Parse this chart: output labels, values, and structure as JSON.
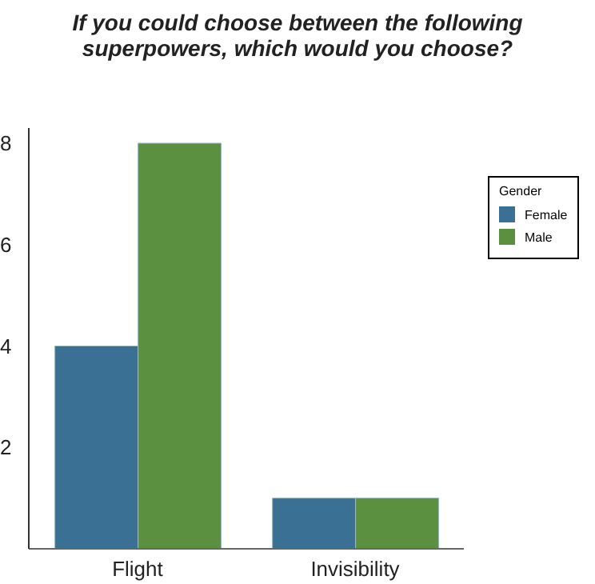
{
  "chart_data": {
    "type": "bar",
    "title": "If you could choose between the following superpowers, which would you choose?",
    "categories": [
      "Flight",
      "Invisibility"
    ],
    "series": [
      {
        "name": "Female",
        "color": "#3a7093",
        "values": [
          4,
          1
        ]
      },
      {
        "name": "Male",
        "color": "#5a9040",
        "values": [
          8,
          1
        ]
      }
    ],
    "ylim": [
      0,
      8.3
    ],
    "yticks": [
      2,
      4,
      6,
      8
    ],
    "grid": false,
    "legend": "top right",
    "legend_title": "Gender"
  }
}
